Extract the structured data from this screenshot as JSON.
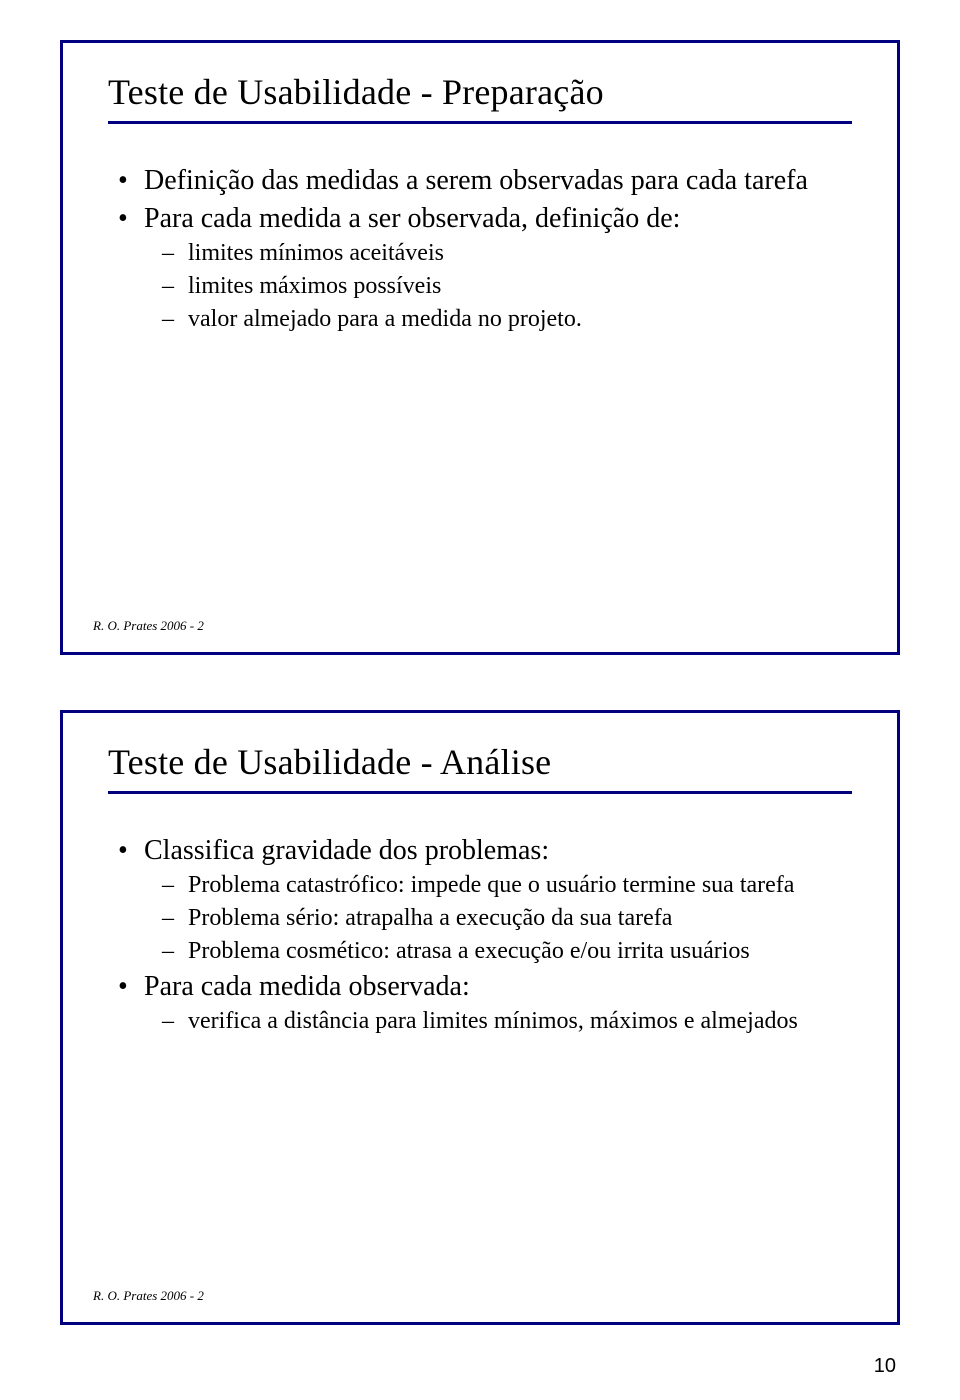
{
  "colors": {
    "slide_border": "#000080",
    "title_text": "#000000",
    "title_rule": "#000080",
    "body_text": "#000000",
    "footer_text": "#000000",
    "page_bg": "#ffffff"
  },
  "page_number": "10",
  "slides": [
    {
      "title": "Teste de Usabilidade - Preparação",
      "footer": "R. O. Prates 2006 - 2",
      "bullets": [
        {
          "text": "Definição das medidas a serem observadas para cada tarefa",
          "children": []
        },
        {
          "text": "Para cada medida a ser observada, definição de:",
          "children": [
            "limites mínimos aceitáveis",
            "limites máximos possíveis",
            "valor almejado para a medida no projeto."
          ]
        }
      ]
    },
    {
      "title": "Teste de Usabilidade - Análise",
      "footer": "R. O. Prates 2006 - 2",
      "bullets": [
        {
          "text": "Classifica gravidade dos problemas:",
          "children": [
            "Problema catastrófico: impede que o usuário termine sua tarefa",
            "Problema sério: atrapalha a execução da sua tarefa",
            "Problema cosmético: atrasa a execução e/ou irrita usuários"
          ]
        },
        {
          "text": "Para cada medida observada:",
          "children": [
            "verifica a distância para limites mínimos, máximos e almejados"
          ]
        }
      ]
    }
  ]
}
